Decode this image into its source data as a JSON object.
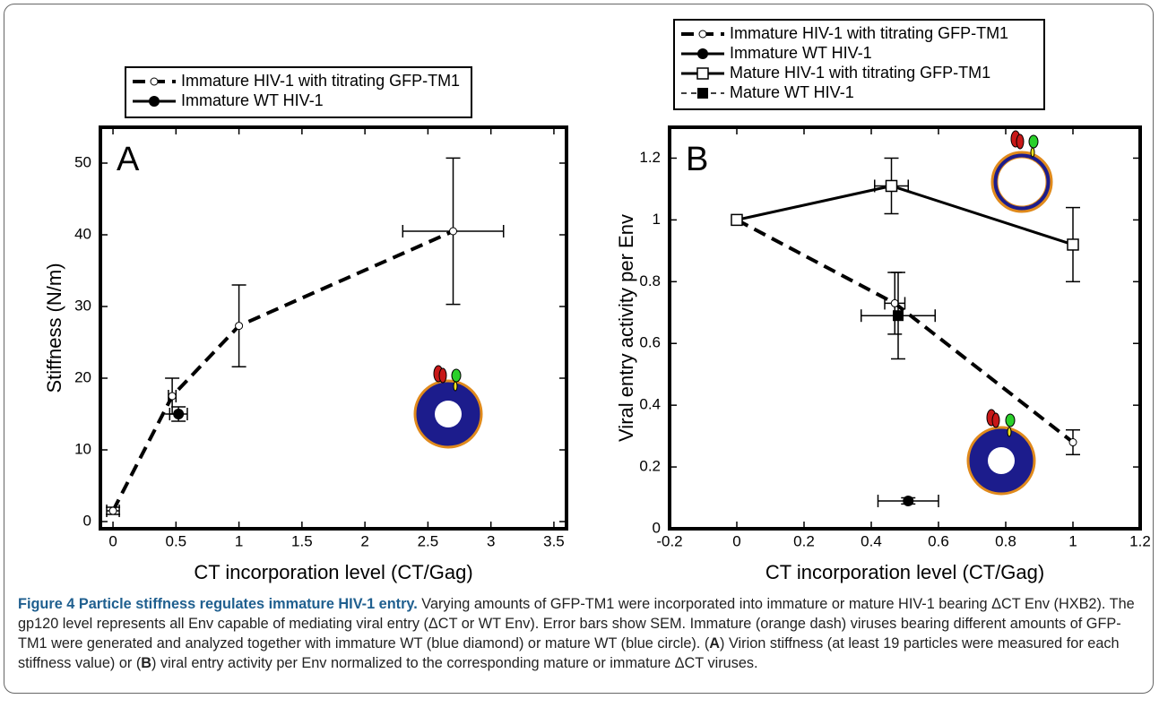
{
  "chart_data": [
    {
      "type": "scatter",
      "panel_label": "A",
      "x_label": "CT incorporation level (CT/Gag)",
      "y_label": "Stiffness (N/m)",
      "xlim": [
        -0.1,
        3.6
      ],
      "xticks": [
        0,
        0.5,
        1,
        1.5,
        2,
        2.5,
        3,
        3.5
      ],
      "ylim": [
        -1,
        55
      ],
      "yticks": [
        0,
        10,
        20,
        30,
        40,
        50
      ],
      "series": [
        {
          "name": "Immature HIV-1 with titrating GFP-TM1",
          "color": "#000000",
          "line": "dashed",
          "marker": "open-circle",
          "x": [
            0,
            0.47,
            1,
            2.7
          ],
          "values": [
            1.5,
            17.5,
            27.3,
            40.5
          ],
          "yerr": [
            0.5,
            2.5,
            5.7,
            10.2
          ],
          "xerr": [
            0.05,
            0.03,
            null,
            0.4
          ]
        },
        {
          "name": "Immature WT HIV-1",
          "color": "#000000",
          "line": "solid",
          "legend_line": true,
          "draw_line": false,
          "marker": "filled-circle",
          "x": [
            0.52
          ],
          "values": [
            15
          ],
          "yerr": [
            1
          ],
          "xerr": [
            0.07
          ]
        }
      ]
    },
    {
      "type": "scatter",
      "panel_label": "B",
      "x_label": "CT incorporation level (CT/Gag)",
      "y_label": "Viral entry activity per Env",
      "xlim": [
        -0.2,
        1.2
      ],
      "xticks": [
        -0.2,
        0,
        0.2,
        0.4,
        0.6,
        0.8,
        1,
        1.2
      ],
      "ylim": [
        0,
        1.3
      ],
      "yticks": [
        0,
        0.2,
        0.4,
        0.6,
        0.8,
        1,
        1.2
      ],
      "series": [
        {
          "name": "Immature HIV-1 with titrating GFP-TM1",
          "color": "#000000",
          "line": "dashed",
          "marker": "open-circle",
          "x": [
            0,
            0.47,
            1
          ],
          "values": [
            1,
            0.73,
            0.28
          ],
          "yerr": [
            null,
            0.1,
            0.04
          ],
          "xerr": [
            null,
            0.03,
            null
          ]
        },
        {
          "name": "Immature WT HIV-1",
          "color": "#000000",
          "line": "solid",
          "draw_line": false,
          "marker": "filled-circle",
          "x": [
            0.51
          ],
          "values": [
            0.09
          ],
          "yerr": [
            0.01
          ],
          "xerr": [
            0.09
          ]
        },
        {
          "name": "Mature HIV-1 with titrating GFP-TM1",
          "color": "#000000",
          "line": "solid",
          "marker": "open-square",
          "x": [
            0,
            0.46,
            1
          ],
          "values": [
            1,
            1.11,
            0.92
          ],
          "yerr": [
            null,
            0.09,
            0.12
          ],
          "xerr": [
            null,
            0.05,
            null
          ]
        },
        {
          "name": "Mature WT HIV-1",
          "color": "#000000",
          "line": "thin-dashed",
          "draw_line": false,
          "marker": "filled-square",
          "x": [
            0.48
          ],
          "values": [
            0.69
          ],
          "yerr": [
            0.14
          ],
          "xerr": [
            0.11
          ]
        }
      ]
    }
  ],
  "caption": {
    "runs": [
      {
        "text": "Figure 4 Particle stiffness regulates immature HIV-1 entry.",
        "bold": true,
        "color": "#1f5f8f"
      },
      {
        "text": " Varying amounts of GFP-TM1 were incorporated into immature or mature HIV-1 bearing ΔCT Env (HXB2). The gp120 level represents all Env capable of mediating viral entry (ΔCT or WT Env). Error bars show SEM. Immature (orange dash) viruses bearing different amounts of GFP-TM1 were generated and analyzed together with immature WT (blue diamond) or mature WT (blue circle). (",
        "bold": false
      },
      {
        "text": "A",
        "bold": true
      },
      {
        "text": ") Virion stiffness (at least 19 particles were measured for each stiffness value) or (",
        "bold": false
      },
      {
        "text": "B",
        "bold": true
      },
      {
        "text": ") viral entry activity per Env normalized to the corresponding mature or immature ΔCT viruses.",
        "bold": false
      }
    ]
  }
}
